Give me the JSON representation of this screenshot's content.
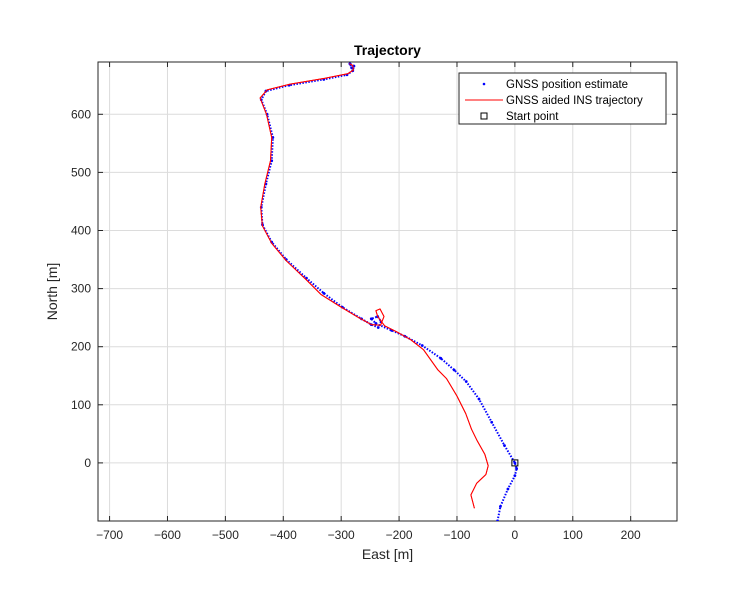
{
  "chart_data": {
    "type": "line",
    "title": "Trajectory",
    "xlabel": "East [m]",
    "ylabel": "North [m]",
    "xlim": [
      -720,
      280
    ],
    "ylim": [
      -100,
      690
    ],
    "xticks": [
      -700,
      -600,
      -500,
      -400,
      -300,
      -200,
      -100,
      0,
      100,
      200
    ],
    "yticks": [
      0,
      100,
      200,
      300,
      400,
      500,
      600
    ],
    "grid": true,
    "legend_position": "top-right",
    "series": [
      {
        "name": "GNSS position estimate",
        "style": "dots",
        "color": "#0000ff",
        "points": [
          [
            -30,
            -100
          ],
          [
            -25,
            -75
          ],
          [
            -12,
            -45
          ],
          [
            0,
            -22
          ],
          [
            3,
            -10
          ],
          [
            0,
            0
          ],
          [
            -18,
            30
          ],
          [
            -40,
            70
          ],
          [
            -62,
            110
          ],
          [
            -84,
            140
          ],
          [
            -105,
            160
          ],
          [
            -128,
            180
          ],
          [
            -160,
            202
          ],
          [
            -190,
            218
          ],
          [
            -213,
            228
          ],
          [
            -240,
            240
          ],
          [
            -248,
            248
          ],
          [
            -237,
            252
          ],
          [
            -231,
            243
          ],
          [
            -236,
            233
          ],
          [
            -248,
            238
          ],
          [
            -265,
            248
          ],
          [
            -298,
            268
          ],
          [
            -330,
            292
          ],
          [
            -360,
            318
          ],
          [
            -395,
            350
          ],
          [
            -420,
            380
          ],
          [
            -436,
            410
          ],
          [
            -438,
            440
          ],
          [
            -430,
            480
          ],
          [
            -420,
            520
          ],
          [
            -418,
            560
          ],
          [
            -428,
            600
          ],
          [
            -438,
            625
          ],
          [
            -430,
            640
          ],
          [
            -390,
            650
          ],
          [
            -330,
            660
          ],
          [
            -290,
            668
          ],
          [
            -280,
            675
          ],
          [
            -278,
            683
          ],
          [
            -285,
            687
          ],
          [
            -282,
            680
          ]
        ]
      },
      {
        "name": "GNSS aided INS trajectory",
        "style": "line",
        "color": "#ff0000",
        "points": [
          [
            -70,
            -78
          ],
          [
            -76,
            -55
          ],
          [
            -66,
            -35
          ],
          [
            -50,
            -20
          ],
          [
            -46,
            -5
          ],
          [
            -52,
            15
          ],
          [
            -65,
            38
          ],
          [
            -75,
            58
          ],
          [
            -85,
            85
          ],
          [
            -100,
            115
          ],
          [
            -118,
            145
          ],
          [
            -133,
            160
          ],
          [
            -158,
            195
          ],
          [
            -180,
            212
          ],
          [
            -205,
            226
          ],
          [
            -225,
            236
          ],
          [
            -237,
            252
          ],
          [
            -240,
            262
          ],
          [
            -233,
            265
          ],
          [
            -226,
            252
          ],
          [
            -232,
            237
          ],
          [
            -248,
            238
          ],
          [
            -270,
            250
          ],
          [
            -300,
            268
          ],
          [
            -335,
            290
          ],
          [
            -360,
            315
          ],
          [
            -395,
            348
          ],
          [
            -420,
            378
          ],
          [
            -436,
            408
          ],
          [
            -439,
            440
          ],
          [
            -432,
            480
          ],
          [
            -422,
            520
          ],
          [
            -420,
            560
          ],
          [
            -429,
            600
          ],
          [
            -440,
            628
          ],
          [
            -428,
            642
          ],
          [
            -388,
            652
          ],
          [
            -328,
            662
          ],
          [
            -288,
            670
          ],
          [
            -279,
            676
          ],
          [
            -280,
            684
          ],
          [
            -286,
            687
          ]
        ]
      },
      {
        "name": "Start point",
        "style": "square",
        "color": "#000000",
        "points": [
          [
            0,
            0
          ]
        ]
      }
    ]
  }
}
